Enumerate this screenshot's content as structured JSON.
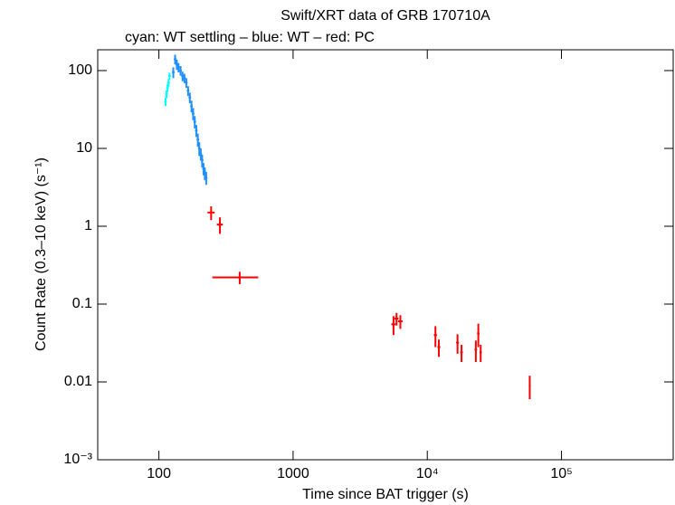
{
  "chart_data": {
    "type": "scatter",
    "title": "Swift/XRT data of GRB 170710A",
    "subtitle": "cyan: WT settling – blue: WT – red: PC",
    "x_label": "Time since BAT trigger (s)",
    "y_label": "Count Rate (0.3–10 keV) (s⁻¹)",
    "x_scale": "log",
    "y_scale": "log",
    "xlim": [
      35,
      680000
    ],
    "ylim": [
      0.001,
      185
    ],
    "xticks": [
      100,
      1000,
      {
        "value": 10000,
        "label": "10⁴"
      },
      {
        "value": 100000,
        "label": "10⁵"
      }
    ],
    "yticks": [
      {
        "value": 0.001,
        "label": "10⁻³"
      },
      0.01,
      0.1,
      1,
      10,
      100
    ],
    "series": [
      {
        "name": "WT settling",
        "color": "#00ffff",
        "x": [
          112,
          114,
          116,
          118,
          120
        ],
        "values": [
          40,
          50,
          60,
          70,
          85
        ],
        "yerr": [
          5,
          6,
          7,
          8,
          9
        ]
      },
      {
        "name": "WT",
        "color": "#1e90ff",
        "x": [
          128,
          132,
          136,
          140,
          145,
          150,
          155,
          160,
          165,
          170,
          175,
          180,
          185,
          190,
          195,
          200,
          205,
          210,
          215,
          220,
          225
        ],
        "values": [
          95,
          140,
          120,
          110,
          100,
          85,
          80,
          70,
          55,
          45,
          35,
          28,
          22,
          17,
          13,
          10,
          8.5,
          7,
          5.5,
          4.8,
          4.2
        ],
        "yerr": [
          15,
          20,
          18,
          15,
          14,
          12,
          11,
          10,
          8,
          7,
          6,
          5,
          4,
          3,
          2.5,
          2,
          1.5,
          1.3,
          1,
          0.9,
          0.8
        ]
      },
      {
        "name": "PC",
        "color": "#ff0000",
        "x": [
          245,
          285,
          400,
          5600,
          5900,
          6300,
          11500,
          12200,
          16800,
          18000,
          23000,
          24000,
          25000,
          58000
        ],
        "xerr": [
          15,
          15,
          150,
          200,
          200,
          250,
          300,
          300,
          400,
          400,
          500,
          500,
          500,
          900
        ],
        "values": [
          1.5,
          1.05,
          0.22,
          0.055,
          0.065,
          0.06,
          0.04,
          0.028,
          0.032,
          0.024,
          0.026,
          0.042,
          0.024,
          0.009
        ],
        "yerr": [
          0.3,
          0.25,
          0.04,
          0.015,
          0.012,
          0.012,
          0.012,
          0.007,
          0.009,
          0.006,
          0.008,
          0.014,
          0.006,
          0.003
        ]
      }
    ]
  }
}
